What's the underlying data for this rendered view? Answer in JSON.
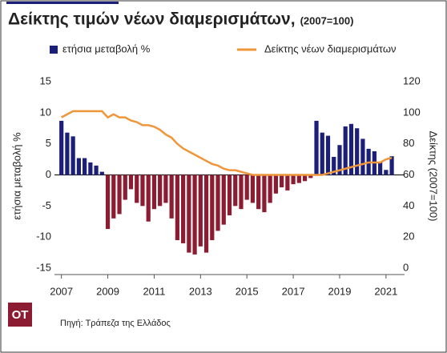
{
  "chart_data": {
    "type": "bar_line",
    "title": "Δείκτης τιμών νέων διαμερισμάτων,",
    "title_note": "(2007=100)",
    "ylabel": "ετήσια μεταβολή %",
    "y2label": "Δείκτης (2007=100)",
    "source": "Πηγή: Τράπεζα της Ελλάδος",
    "logo": "ΟΤ",
    "x": [
      2007,
      2007.25,
      2007.5,
      2007.75,
      2008,
      2008.25,
      2008.5,
      2008.75,
      2009,
      2009.25,
      2009.5,
      2009.75,
      2010,
      2010.25,
      2010.5,
      2010.75,
      2011,
      2011.25,
      2011.5,
      2011.75,
      2012,
      2012.25,
      2012.5,
      2012.75,
      2013,
      2013.25,
      2013.5,
      2013.75,
      2014,
      2014.25,
      2014.5,
      2014.75,
      2015,
      2015.25,
      2015.5,
      2015.75,
      2016,
      2016.25,
      2016.5,
      2016.75,
      2017,
      2017.25,
      2017.5,
      2017.75,
      2018,
      2018.25,
      2018.5,
      2018.75,
      2019,
      2019.25,
      2019.5,
      2019.75,
      2020,
      2020.25,
      2020.5,
      2020.75,
      2021,
      2021.25
    ],
    "xlim": [
      2006.7,
      2021.8
    ],
    "xticks": [
      2007,
      2009,
      2011,
      2013,
      2015,
      2017,
      2019,
      2021
    ],
    "ylim": [
      -15,
      15
    ],
    "yticks": [
      -15,
      -10,
      -5,
      0,
      5,
      10,
      15
    ],
    "y2lim": [
      0,
      120
    ],
    "y2ticks": [
      0,
      20,
      40,
      60,
      80,
      100,
      120
    ],
    "series": [
      {
        "name": "ετήσια μεταβολή %",
        "type": "bar",
        "color": "#1c1f78",
        "negative_color": "#8c1c32",
        "values": [
          8.7,
          6.8,
          6.2,
          2.7,
          2.7,
          2.0,
          1.5,
          0.5,
          -8.7,
          -7.0,
          -6.3,
          -4.0,
          -2.3,
          -4.5,
          -5.0,
          -7.5,
          -5.5,
          -5.0,
          -4.5,
          -7.0,
          -10.5,
          -11.0,
          -12.5,
          -12.8,
          -11.5,
          -12.5,
          -10.5,
          -9.0,
          -8.0,
          -6.5,
          -5.0,
          -5.5,
          -4.0,
          -4.5,
          -5.5,
          -6.0,
          -4.5,
          -3.0,
          -2.0,
          -2.5,
          -1.5,
          -1.3,
          -1.0,
          -0.5,
          8.7,
          6.8,
          6.3,
          2.9,
          4.8,
          7.8,
          8.2,
          7.5,
          5.8,
          4.2,
          3.8,
          2.0,
          0.8,
          3.0
        ]
      },
      {
        "name": "Δείκτης νέων διαμερισμάτων",
        "type": "line",
        "axis": "y2",
        "color": "#f0963a",
        "values": [
          97,
          99,
          101,
          101,
          101,
          101,
          101,
          101,
          97,
          99,
          97,
          97,
          95,
          94,
          92,
          92,
          91,
          89,
          86,
          84,
          80,
          77,
          75,
          73,
          71,
          69,
          67,
          66,
          64,
          63,
          63,
          62,
          61,
          60,
          60,
          60,
          60,
          60,
          60,
          60,
          60,
          60,
          60,
          60,
          60,
          60,
          61,
          62,
          63,
          64,
          65,
          66,
          67,
          68,
          68,
          68,
          70,
          71
        ]
      }
    ]
  }
}
